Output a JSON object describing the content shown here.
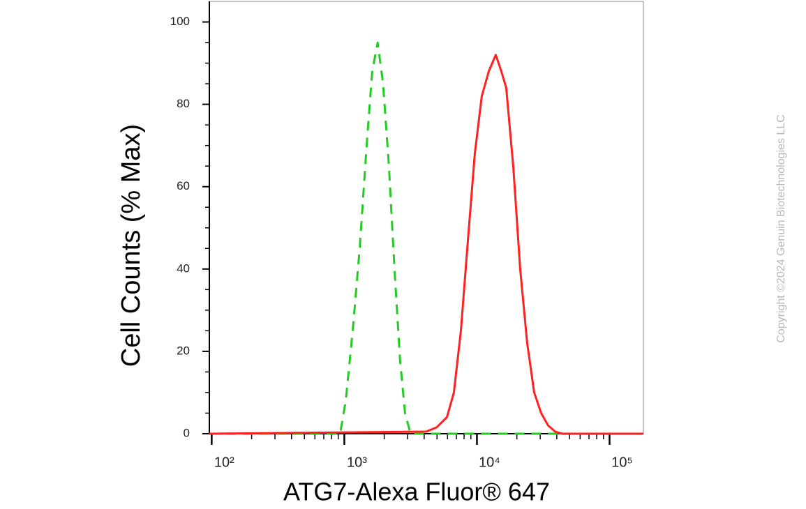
{
  "chart_data": {
    "type": "line",
    "xlabel": "ATG7-Alexa Fluor® 647",
    "ylabel": "Cell Counts (% Max)",
    "annotation": "Copyright ©2024 Genuin Biotechnologies LLC",
    "xscale": "log",
    "xlim": [
      96,
      180000
    ],
    "ylim": [
      0,
      105
    ],
    "xticks": [
      {
        "value": 100,
        "label": "10²"
      },
      {
        "value": 1000,
        "label": "10³"
      },
      {
        "value": 10000,
        "label": "10⁴"
      },
      {
        "value": 100000,
        "label": "10⁵"
      }
    ],
    "yticks": [
      0,
      20,
      40,
      60,
      80,
      100
    ],
    "series": [
      {
        "color": "#22cc22",
        "style": "dashed",
        "x": [
          96,
          930,
          1025,
          1157,
          1306,
          1474,
          1623,
          1785,
          1960,
          2170,
          2390,
          2630,
          2870,
          3160,
          180000
        ],
        "values": [
          0,
          0,
          8,
          25,
          45,
          70,
          88,
          95,
          85,
          65,
          40,
          18,
          5,
          0,
          0
        ]
      },
      {
        "color": "#ff2020",
        "style": "solid",
        "x": [
          96,
          4130,
          4950,
          5940,
          6700,
          7570,
          8550,
          9640,
          10880,
          12280,
          13870,
          15280,
          16630,
          18780,
          21190,
          23930,
          27020,
          30500,
          34440,
          38850,
          43860,
          180000
        ],
        "values": [
          0,
          0.5,
          1.5,
          4,
          10,
          25,
          47,
          68,
          82,
          88,
          92,
          88,
          84,
          65,
          40,
          22,
          10,
          5,
          2,
          0.5,
          0,
          0
        ]
      }
    ]
  }
}
